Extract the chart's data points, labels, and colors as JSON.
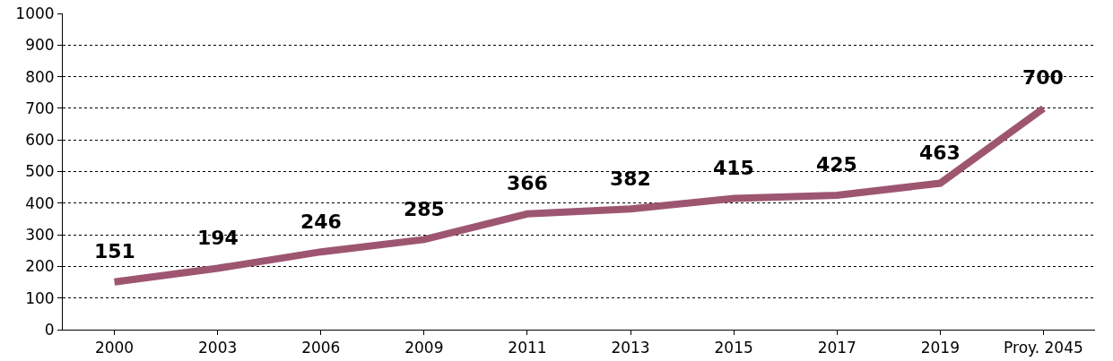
{
  "chart_data": {
    "type": "line",
    "categories": [
      "2000",
      "2003",
      "2006",
      "2009",
      "2011",
      "2013",
      "2015",
      "2017",
      "2019",
      "Proy. 2045"
    ],
    "series": [
      {
        "color": "#9e5670",
        "values": [
          151,
          194,
          246,
          285,
          366,
          382,
          415,
          425,
          463,
          700
        ]
      }
    ],
    "ylim": [
      0,
      1000
    ],
    "yticks": [
      0,
      100,
      200,
      300,
      400,
      500,
      600,
      700,
      800,
      900,
      1000
    ],
    "grid": "y",
    "marker": "none",
    "line_style": "solid",
    "data_labels": true
  }
}
